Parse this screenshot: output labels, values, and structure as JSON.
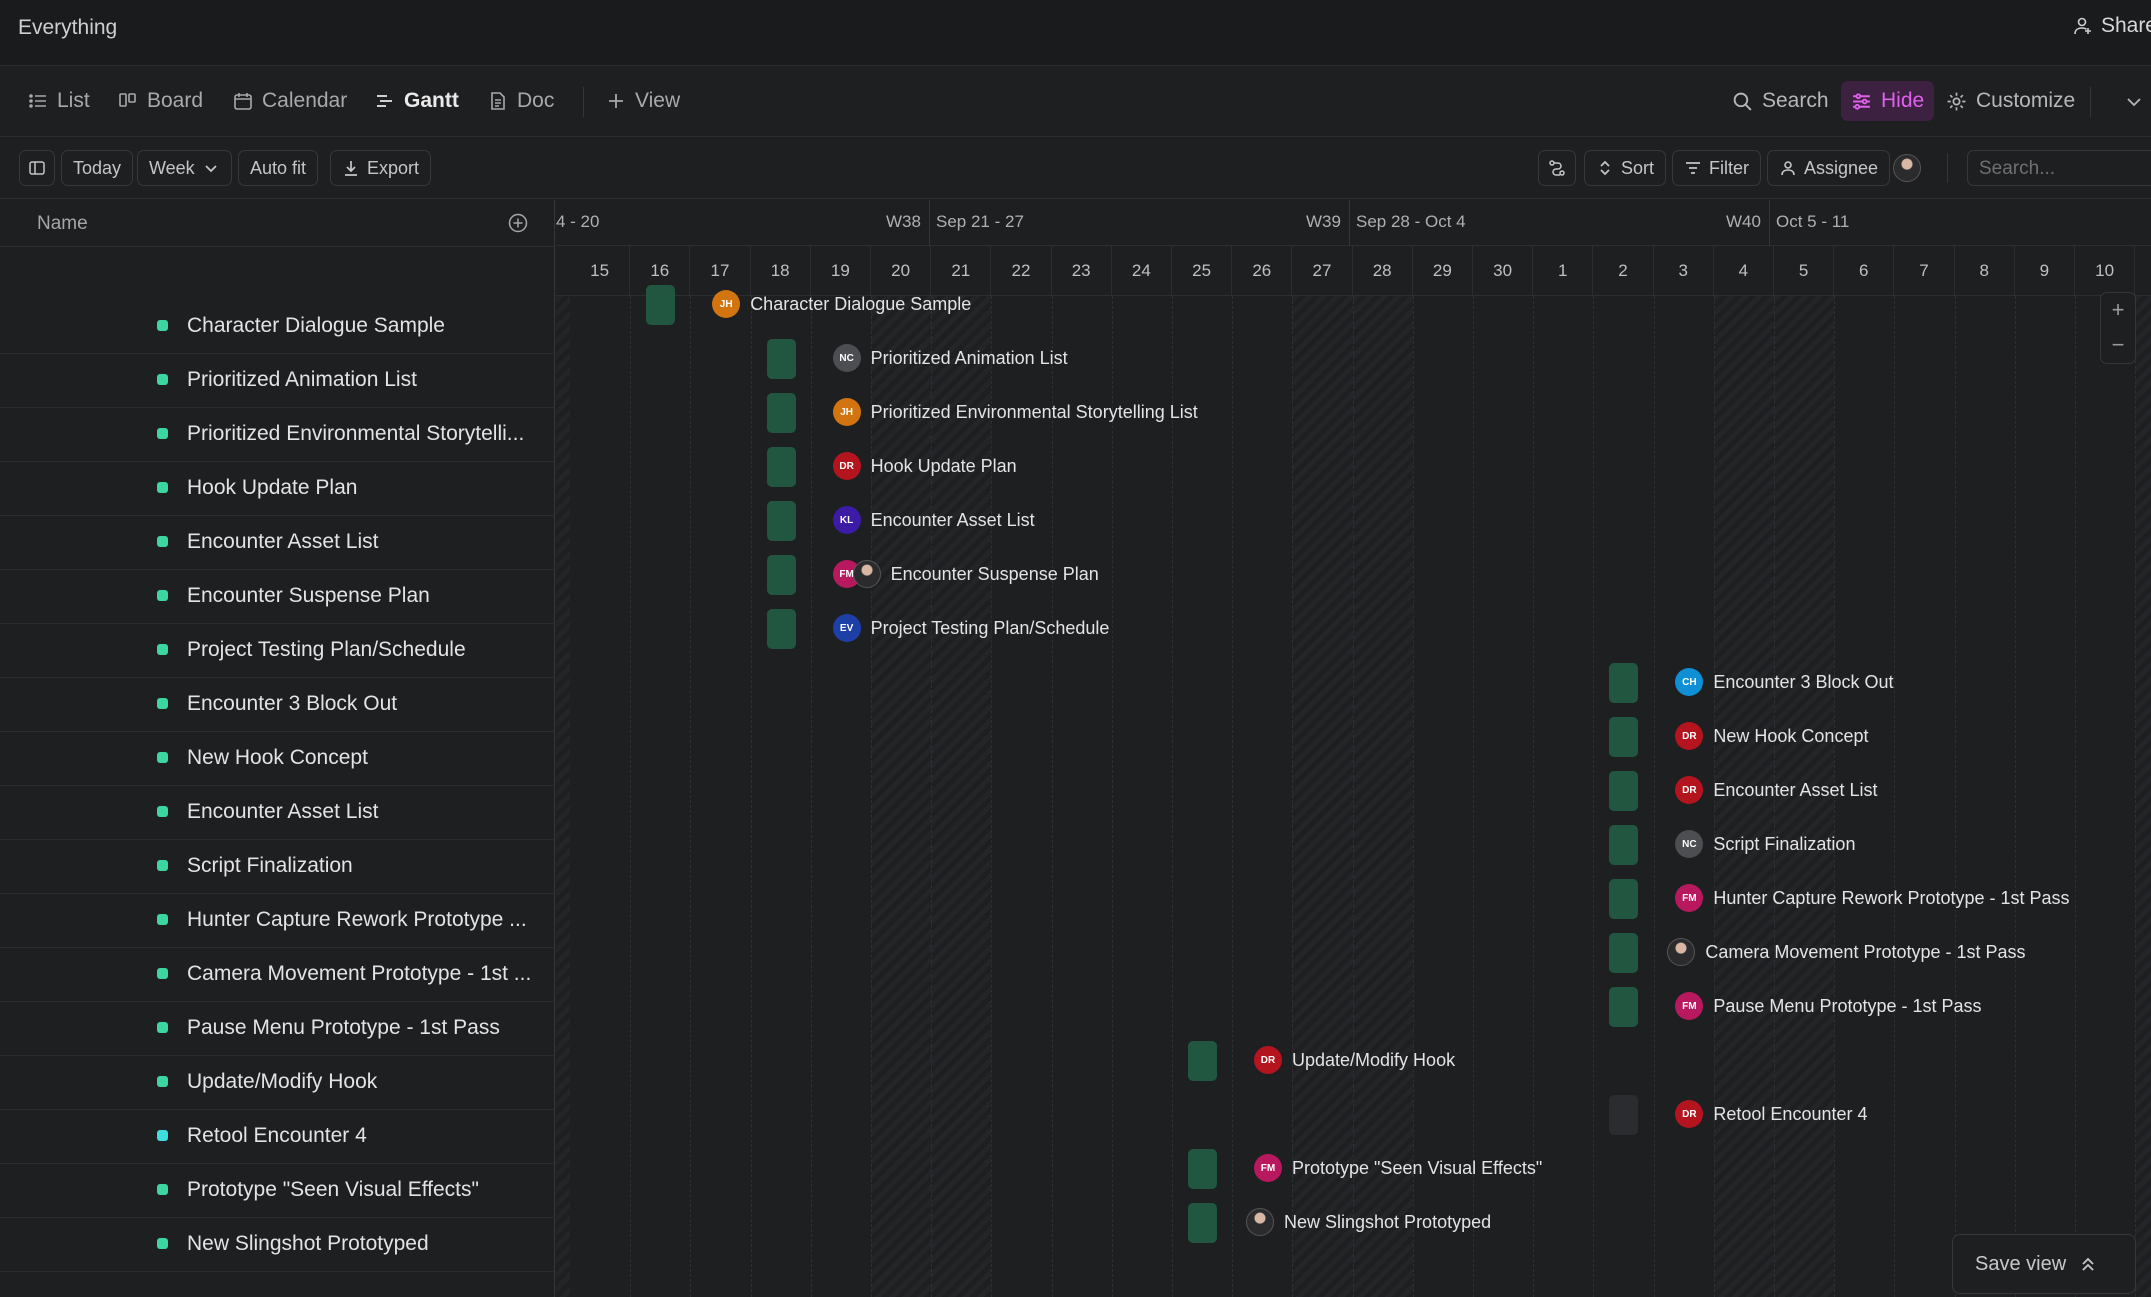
{
  "app": {
    "title": "Everything",
    "share_label": "Share"
  },
  "views": {
    "tabs": [
      {
        "label": "List",
        "icon": "list-icon",
        "active": false
      },
      {
        "label": "Board",
        "icon": "board-icon",
        "active": false
      },
      {
        "label": "Calendar",
        "icon": "calendar-icon",
        "active": false
      },
      {
        "label": "Gantt",
        "icon": "gantt-icon",
        "active": true
      },
      {
        "label": "Doc",
        "icon": "doc-icon",
        "active": false
      }
    ],
    "add_view_label": "View",
    "search_label": "Search",
    "hide_label": "Hide",
    "customize_label": "Customize"
  },
  "toolbar": {
    "today_label": "Today",
    "week_label": "Week",
    "autofit_label": "Auto fit",
    "export_label": "Export",
    "sort_label": "Sort",
    "filter_label": "Filter",
    "assignee_label": "Assignee",
    "search_placeholder": "Search..."
  },
  "list": {
    "name_header": "Name",
    "rows": [
      "Character Dialogue Sample",
      "Prioritized Animation List",
      "Prioritized Environmental Storytelli...",
      "Hook Update Plan",
      "Encounter Asset List",
      "Encounter Suspense Plan",
      "Project Testing Plan/Schedule",
      "Encounter 3 Block Out",
      "New Hook Concept",
      "Encounter Asset List",
      "Script Finalization",
      "Hunter Capture Rework Prototype ...",
      "Camera Movement Prototype - 1st ...",
      "Pause Menu Prototype - 1st Pass",
      "Update/Modify Hook",
      "Retool Encounter 4",
      "Prototype \"Seen Visual Effects\"",
      "New Slingshot Prototyped"
    ]
  },
  "timeline": {
    "weeks": [
      {
        "label": "4 - 20"
      },
      {
        "label": "W38"
      },
      {
        "label": "Sep 21 - 27"
      },
      {
        "label": "W39"
      },
      {
        "label": "Sep 28 - Oct 4"
      },
      {
        "label": "W40"
      },
      {
        "label": "Oct 5 - 11"
      }
    ],
    "days": [
      "15",
      "16",
      "17",
      "18",
      "19",
      "20",
      "21",
      "22",
      "23",
      "24",
      "25",
      "26",
      "27",
      "28",
      "29",
      "30",
      "1",
      "2",
      "3",
      "4",
      "5",
      "6",
      "7",
      "8",
      "9",
      "10"
    ],
    "tasks": [
      {
        "name": "Character Dialogue Sample",
        "assignees": [
          "JH"
        ],
        "colors": [
          "#d2740f"
        ]
      },
      {
        "name": "Prioritized Animation List",
        "assignees": [
          "NC"
        ],
        "colors": [
          "#4d4e52"
        ]
      },
      {
        "name": "Prioritized Environmental Storytelling List",
        "assignees": [
          "JH"
        ],
        "colors": [
          "#d2740f"
        ]
      },
      {
        "name": "Hook Update Plan",
        "assignees": [
          "DR"
        ],
        "colors": [
          "#b3141d"
        ]
      },
      {
        "name": "Encounter Asset List",
        "assignees": [
          "KL"
        ],
        "colors": [
          "#3c1ba6"
        ]
      },
      {
        "name": "Encounter Suspense Plan",
        "assignees": [
          "FM",
          "photo"
        ],
        "colors": [
          "#b8195e"
        ]
      },
      {
        "name": "Project Testing Plan/Schedule",
        "assignees": [
          "EV"
        ],
        "colors": [
          "#1d3fa8"
        ]
      },
      {
        "name": "Encounter 3 Block Out",
        "assignees": [
          "CH"
        ],
        "colors": [
          "#0f8fd6"
        ]
      },
      {
        "name": "New Hook Concept",
        "assignees": [
          "DR"
        ],
        "colors": [
          "#b3141d"
        ]
      },
      {
        "name": "Encounter Asset List",
        "assignees": [
          "DR"
        ],
        "colors": [
          "#b3141d"
        ]
      },
      {
        "name": "Script Finalization",
        "assignees": [
          "NC"
        ],
        "colors": [
          "#4d4e52"
        ]
      },
      {
        "name": "Hunter Capture Rework Prototype - 1st Pass",
        "assignees": [
          "FM"
        ],
        "colors": [
          "#b8195e"
        ]
      },
      {
        "name": "Camera Movement Prototype - 1st Pass",
        "assignees": [
          "photo"
        ],
        "colors": []
      },
      {
        "name": "Pause Menu Prototype - 1st Pass",
        "assignees": [
          "FM"
        ],
        "colors": [
          "#b8195e"
        ]
      },
      {
        "name": "Update/Modify Hook",
        "assignees": [
          "DR"
        ],
        "colors": [
          "#b3141d"
        ]
      },
      {
        "name": "Retool Encounter 4",
        "assignees": [
          "DR"
        ],
        "colors": [
          "#b3141d"
        ]
      },
      {
        "name": "Prototype \"Seen Visual Effects\"",
        "assignees": [
          "FM"
        ],
        "colors": [
          "#b8195e"
        ]
      },
      {
        "name": "New Slingshot Prototyped",
        "assignees": [
          "photo"
        ],
        "colors": []
      }
    ]
  },
  "zoom": {
    "in_label": "+",
    "out_label": "−"
  },
  "save_view_label": "Save view",
  "colors": {
    "accent": "#e060ee",
    "bar": "#215740",
    "status_dot": "#3ed6a0"
  }
}
